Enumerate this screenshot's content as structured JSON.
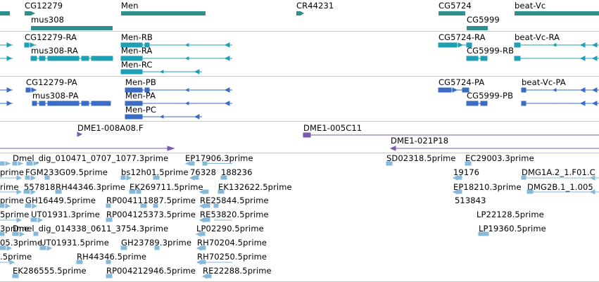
{
  "colors": {
    "gene": "#2f8f8a",
    "mrna": "#1f9fb5",
    "protein": "#3a6cc4",
    "clone": "#7a5bb0",
    "est": "#86b8d8",
    "separator": "#c8c8c8"
  },
  "tracks": {
    "genes": {
      "labels": [
        "CG12279",
        "Men",
        "CR44231",
        "CG5724",
        "beat-Vc",
        "mus308",
        "CG5999"
      ]
    },
    "mrna": {
      "labels": [
        "CG12279-RA",
        "Men-RB",
        "CG5724-RA",
        "beat-Vc-RA",
        "mus308-RA",
        "Men-RA",
        "CG5999-RB",
        "Men-RC"
      ]
    },
    "proteins": {
      "labels": [
        "CG12279-PA",
        "Men-PB",
        "CG5724-PA",
        "beat-Vc-PA",
        "mus308-PA",
        "Men-PA",
        "CG5999-PB",
        "Men-PC"
      ]
    },
    "clones": {
      "labels": [
        "DME1-008A08.F",
        "DME1-005C11",
        "DME1-021P18"
      ]
    },
    "ests": {
      "labels": [
        "Dmel_dig_010471_0707_1077.3prime",
        "EP17906.3prime",
        "SD02318.5prime",
        "EC29003.3prime",
        "prime",
        "FGM233G09.5prime",
        "bs12h01.5prime",
        "76328",
        "188236",
        "19176",
        "DMG1A.2_1.F01.C",
        "rime",
        "557818",
        "RH44346.3prime",
        "EK269711.5prime",
        "EK132622.5prime",
        "EP18210.3prime",
        "DMG2B.1_1.005",
        "prime",
        "GH16449.5prime",
        "RP004111887.5prime",
        "RE25844.5prime",
        "513843",
        "5prime",
        "UT01931.3prime",
        "RP004125373.5prime",
        "RE53820.5prime",
        "LP22128.5prime",
        "3prime",
        "Dmel_dig_014338_0611_3754.3prime",
        "LP02290.5prime",
        "LP19360.5prime",
        "05.3prime",
        "UT01931.5prime",
        "GH23789.3prime",
        "RH70204.5prime",
        ".5prime",
        "RH44346.5prime",
        "RH70250.5prime",
        "EK286555.5prime",
        "RP004212946.5prime",
        "RE22288.5prime"
      ]
    }
  }
}
